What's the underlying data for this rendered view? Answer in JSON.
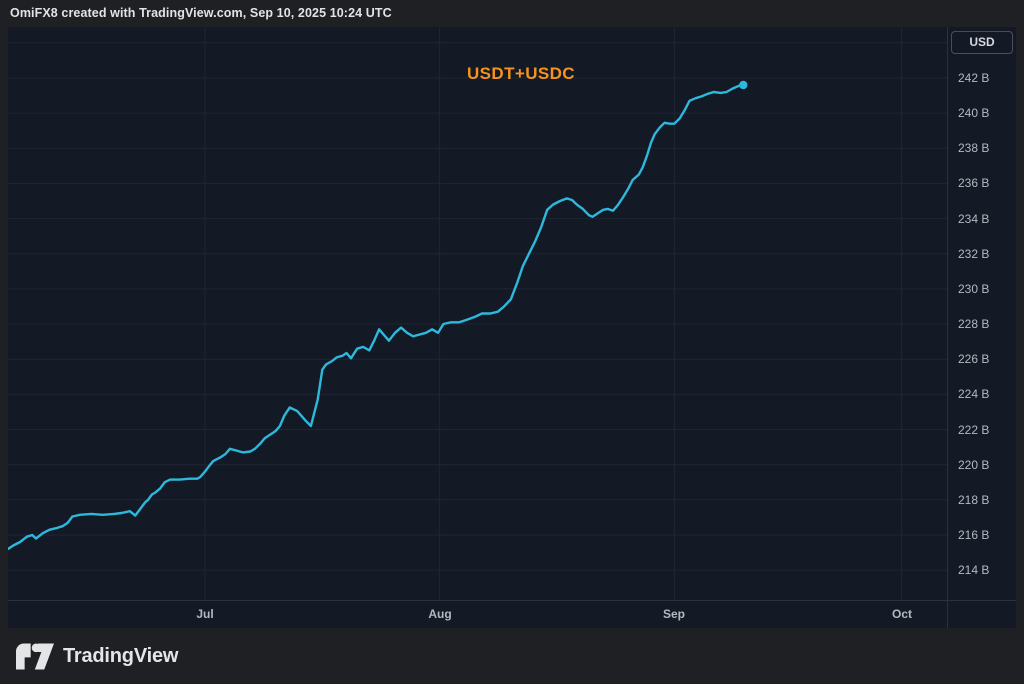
{
  "header": {
    "attribution": "OmiFX8 created with TradingView.com, Sep 10, 2025 10:24 UTC"
  },
  "price_axis": {
    "currency": "USD"
  },
  "footer": {
    "brand": "TradingView"
  },
  "colors": {
    "outer_bg": "#1e2023",
    "chart_bg": "#141926",
    "grid": "#1f2534",
    "separator": "#2c3140",
    "axis_text": "#b5b8bf",
    "line": "#2cb9dc",
    "annotation_orange": "#f7931a"
  },
  "chart_data": {
    "type": "line",
    "title": "USDT+USDC",
    "ylabel": "USD (billions)",
    "x_unit": "days since 2025-06-05",
    "grid": true,
    "legend_position": "none",
    "x_domain": [
      0,
      124
    ],
    "y_domain": [
      212.3,
      244.9
    ],
    "x_ticks": [
      {
        "label": "Jul",
        "x": 26
      },
      {
        "label": "Aug",
        "x": 57
      },
      {
        "label": "Sep",
        "x": 88
      },
      {
        "label": "Oct",
        "x": 118
      }
    ],
    "y_ticks": [
      {
        "label": "242 B",
        "v": 242
      },
      {
        "label": "240 B",
        "v": 240
      },
      {
        "label": "238 B",
        "v": 238
      },
      {
        "label": "236 B",
        "v": 236
      },
      {
        "label": "234 B",
        "v": 234
      },
      {
        "label": "232 B",
        "v": 232
      },
      {
        "label": "230 B",
        "v": 230
      },
      {
        "label": "228 B",
        "v": 228
      },
      {
        "label": "226 B",
        "v": 226
      },
      {
        "label": "224 B",
        "v": 224
      },
      {
        "label": "222 B",
        "v": 222
      },
      {
        "label": "220 B",
        "v": 220
      },
      {
        "label": "218 B",
        "v": 218
      },
      {
        "label": "216 B",
        "v": 216
      },
      {
        "label": "214 B",
        "v": 214
      }
    ],
    "y_grid": [
      214,
      216,
      218,
      220,
      222,
      224,
      226,
      228,
      230,
      232,
      234,
      236,
      238,
      240,
      242,
      244
    ],
    "end_marker": true,
    "series": [
      {
        "name": "USDT+USDC",
        "color": "#2cb9dc",
        "points": [
          [
            0,
            215.2
          ],
          [
            0.7,
            215.4
          ],
          [
            1.6,
            215.6
          ],
          [
            2.5,
            215.9
          ],
          [
            3.2,
            216.0
          ],
          [
            3.7,
            215.8
          ],
          [
            4.6,
            216.1
          ],
          [
            5.5,
            216.3
          ],
          [
            6.5,
            216.4
          ],
          [
            7.2,
            216.5
          ],
          [
            7.9,
            216.7
          ],
          [
            8.5,
            217.05
          ],
          [
            9.5,
            217.15
          ],
          [
            11,
            217.2
          ],
          [
            12.5,
            217.15
          ],
          [
            14,
            217.2
          ],
          [
            15,
            217.25
          ],
          [
            16.1,
            217.35
          ],
          [
            16.8,
            217.1
          ],
          [
            17.4,
            217.45
          ],
          [
            18.1,
            217.85
          ],
          [
            18.5,
            218.0
          ],
          [
            19,
            218.3
          ],
          [
            19.4,
            218.4
          ],
          [
            20.1,
            218.65
          ],
          [
            20.7,
            219.0
          ],
          [
            21.4,
            219.15
          ],
          [
            22.7,
            219.15
          ],
          [
            24,
            219.2
          ],
          [
            25,
            219.2
          ],
          [
            25.4,
            219.3
          ],
          [
            26,
            219.6
          ],
          [
            26.7,
            220.0
          ],
          [
            27.1,
            220.2
          ],
          [
            28,
            220.4
          ],
          [
            28.7,
            220.6
          ],
          [
            29.3,
            220.9
          ],
          [
            30.2,
            220.8
          ],
          [
            31,
            220.7
          ],
          [
            32,
            220.75
          ],
          [
            32.6,
            220.9
          ],
          [
            33.3,
            221.2
          ],
          [
            33.9,
            221.5
          ],
          [
            34.6,
            221.7
          ],
          [
            35.3,
            221.9
          ],
          [
            35.9,
            222.2
          ],
          [
            36.5,
            222.8
          ],
          [
            37.2,
            223.25
          ],
          [
            38.2,
            223.05
          ],
          [
            39.3,
            222.5
          ],
          [
            40,
            222.2
          ],
          [
            40.9,
            223.7
          ],
          [
            41.5,
            225.4
          ],
          [
            42,
            225.7
          ],
          [
            42.8,
            225.9
          ],
          [
            43.4,
            226.1
          ],
          [
            44.2,
            226.2
          ],
          [
            44.7,
            226.35
          ],
          [
            45.3,
            226.05
          ],
          [
            46.1,
            226.6
          ],
          [
            46.9,
            226.7
          ],
          [
            47.7,
            226.5
          ],
          [
            48.4,
            227.1
          ],
          [
            49,
            227.7
          ],
          [
            49.7,
            227.35
          ],
          [
            50.3,
            227.05
          ],
          [
            51.1,
            227.5
          ],
          [
            51.9,
            227.8
          ],
          [
            52.7,
            227.5
          ],
          [
            53.5,
            227.3
          ],
          [
            54.3,
            227.4
          ],
          [
            55.2,
            227.5
          ],
          [
            56,
            227.7
          ],
          [
            56.8,
            227.5
          ],
          [
            57.5,
            228.0
          ],
          [
            58.5,
            228.1
          ],
          [
            59.6,
            228.1
          ],
          [
            60.6,
            228.25
          ],
          [
            61.6,
            228.4
          ],
          [
            62.6,
            228.6
          ],
          [
            63.7,
            228.6
          ],
          [
            64.7,
            228.7
          ],
          [
            65.5,
            229.0
          ],
          [
            66.4,
            229.4
          ],
          [
            67.2,
            230.3
          ],
          [
            68,
            231.3
          ],
          [
            68.8,
            232.0
          ],
          [
            69.6,
            232.7
          ],
          [
            70.4,
            233.5
          ],
          [
            71.2,
            234.5
          ],
          [
            72,
            234.8
          ],
          [
            72.9,
            235.0
          ],
          [
            73.8,
            235.15
          ],
          [
            74.5,
            235.05
          ],
          [
            75.1,
            234.8
          ],
          [
            75.9,
            234.55
          ],
          [
            76.7,
            234.2
          ],
          [
            77.2,
            234.1
          ],
          [
            77.9,
            234.3
          ],
          [
            78.6,
            234.5
          ],
          [
            79.2,
            234.55
          ],
          [
            79.9,
            234.45
          ],
          [
            80.5,
            234.75
          ],
          [
            81.2,
            235.2
          ],
          [
            81.9,
            235.7
          ],
          [
            82.5,
            236.2
          ],
          [
            83.3,
            236.5
          ],
          [
            83.8,
            236.9
          ],
          [
            84.4,
            237.6
          ],
          [
            84.9,
            238.3
          ],
          [
            85.4,
            238.8
          ],
          [
            86.1,
            239.2
          ],
          [
            86.7,
            239.45
          ],
          [
            87.4,
            239.4
          ],
          [
            88,
            239.4
          ],
          [
            88.7,
            239.7
          ],
          [
            89.4,
            240.2
          ],
          [
            90,
            240.7
          ],
          [
            90.8,
            240.85
          ],
          [
            91.6,
            240.95
          ],
          [
            92.4,
            241.1
          ],
          [
            93.2,
            241.2
          ],
          [
            94.1,
            241.15
          ],
          [
            94.9,
            241.2
          ],
          [
            95.7,
            241.4
          ],
          [
            96.5,
            241.55
          ],
          [
            97.1,
            241.6
          ]
        ]
      }
    ]
  }
}
